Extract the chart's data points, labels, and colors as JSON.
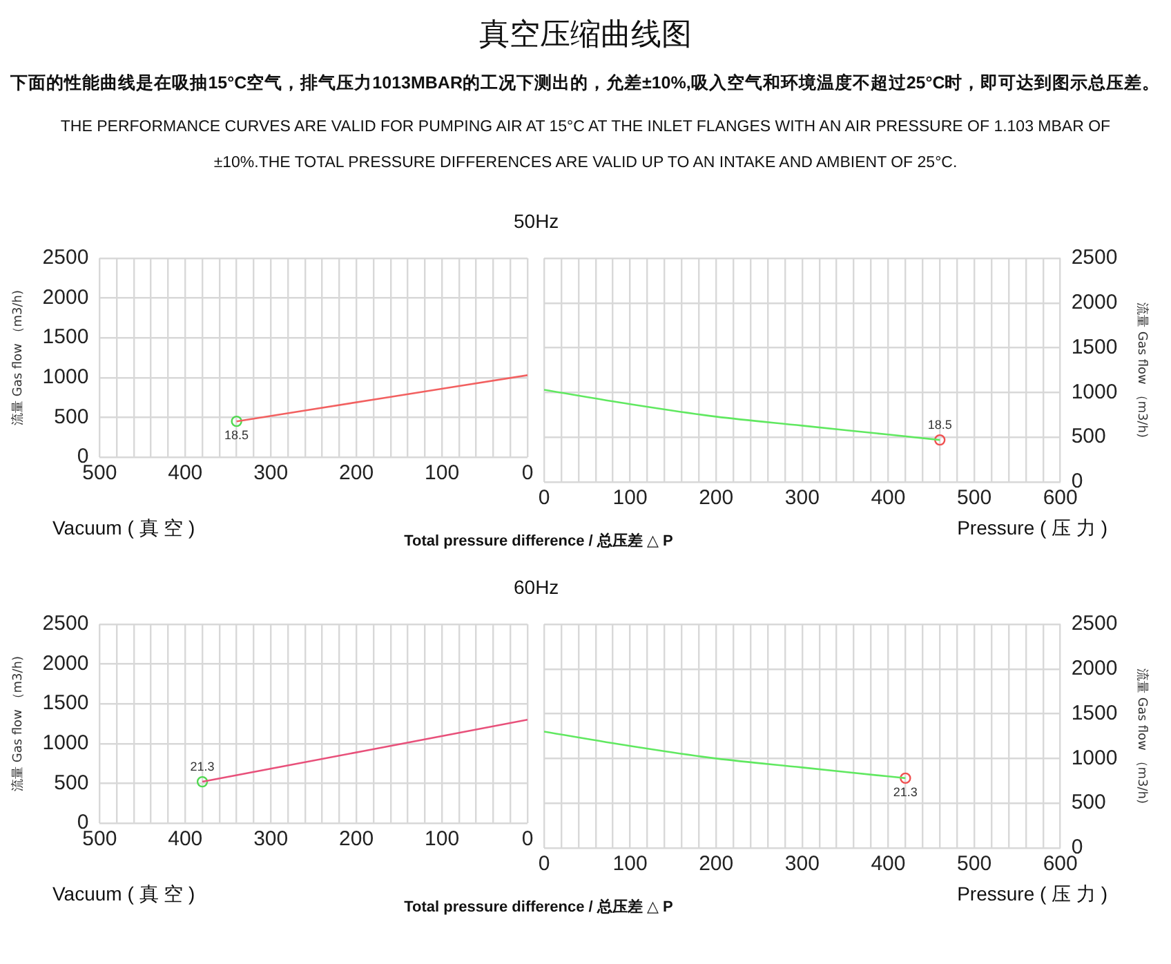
{
  "chart_data": [
    {
      "type": "line",
      "annotations": [
        "真空压缩曲线图",
        "下面的性能曲线是在吸抽15°C空气，排气压力1013MBAR的工况下测出的，允差±10%,吸入空气和环境温度不超过25°C时，即可达到图示总压差。",
        "THE PERFORMANCE CURVES ARE VALID FOR PUMPING AIR AT 15°C AT THE INLET FLANGES WITH AN AIR PRESSURE OF 1.103 MBAR OF ±10%.THE TOTAL PRESSURE DIFFERENCES ARE VALID UP TO AN INTAKE AND AMBIENT OF 25°C.",
        {
          "text": "18.5",
          "x": 340,
          "y": 450
        }
      ],
      "xlabel": "Vacuum ( 真 空 )",
      "ylabel": "流量 Gas flow （m3/h)",
      "grid": true,
      "xlim": [
        500,
        0
      ],
      "xticks": [
        500,
        {
          "value": 480,
          "label": null
        },
        {
          "value": 460,
          "label": null
        },
        {
          "value": 440,
          "label": null
        },
        {
          "value": 420,
          "label": null
        },
        400,
        {
          "value": 380,
          "label": null
        },
        {
          "value": 360,
          "label": null
        },
        {
          "value": 340,
          "label": null
        },
        {
          "value": 320,
          "label": null
        },
        300,
        {
          "value": 280,
          "label": null
        },
        {
          "value": 260,
          "label": null
        },
        {
          "value": 240,
          "label": null
        },
        {
          "value": 220,
          "label": null
        },
        200,
        {
          "value": 180,
          "label": null
        },
        {
          "value": 160,
          "label": null
        },
        {
          "value": 140,
          "label": null
        },
        {
          "value": 120,
          "label": null
        },
        100,
        {
          "value": 80,
          "label": null
        },
        {
          "value": 60,
          "label": null
        },
        {
          "value": 40,
          "label": null
        },
        {
          "value": 20,
          "label": null
        },
        0
      ],
      "ylim": [
        0,
        2500
      ],
      "yticks": [
        0,
        500,
        1000,
        1500,
        2000,
        2500
      ],
      "series": [
        {
          "type": "line",
          "color": "#f26060",
          "x": [
            0,
            170,
            340
          ],
          "values": [
            1030,
            740,
            450
          ]
        },
        {
          "type": "scatter",
          "marker": "circle",
          "color": "#50d850",
          "x": [
            340
          ],
          "values": [
            450
          ]
        }
      ]
    },
    {
      "type": "line",
      "title": "50Hz",
      "annotations": [
        "Total pressure difference / 总压差 △ P",
        {
          "text": "18.5",
          "x": 460,
          "y": 470
        }
      ],
      "xlabel": "Pressure ( 压 力 )",
      "ylabel": "流量 Gas flow （m3/h)",
      "grid": true,
      "xlim": [
        0,
        600
      ],
      "xticks": [
        0,
        {
          "value": 20,
          "label": null
        },
        {
          "value": 40,
          "label": null
        },
        {
          "value": 60,
          "label": null
        },
        {
          "value": 80,
          "label": null
        },
        100,
        {
          "value": 120,
          "label": null
        },
        {
          "value": 140,
          "label": null
        },
        {
          "value": 160,
          "label": null
        },
        {
          "value": 180,
          "label": null
        },
        200,
        {
          "value": 220,
          "label": null
        },
        {
          "value": 240,
          "label": null
        },
        {
          "value": 260,
          "label": null
        },
        {
          "value": 280,
          "label": null
        },
        300,
        {
          "value": 320,
          "label": null
        },
        {
          "value": 340,
          "label": null
        },
        {
          "value": 360,
          "label": null
        },
        {
          "value": 380,
          "label": null
        },
        400,
        {
          "value": 420,
          "label": null
        },
        {
          "value": 440,
          "label": null
        },
        {
          "value": 460,
          "label": null
        },
        {
          "value": 480,
          "label": null
        },
        500,
        {
          "value": 520,
          "label": null
        },
        {
          "value": 540,
          "label": null
        },
        {
          "value": 560,
          "label": null
        },
        {
          "value": 580,
          "label": null
        },
        600
      ],
      "ylim": [
        0,
        2500
      ],
      "yticks": [
        0,
        500,
        1000,
        1500,
        2000,
        2500
      ],
      "series": [
        {
          "type": "line",
          "color": "#60e860",
          "x": [
            0,
            100,
            200,
            300,
            400,
            460
          ],
          "values": [
            1030,
            870,
            730,
            630,
            530,
            470
          ]
        },
        {
          "type": "scatter",
          "marker": "circle",
          "color": "#f05050",
          "x": [
            460
          ],
          "values": [
            470
          ]
        }
      ]
    },
    {
      "type": "line",
      "annotations": [
        {
          "text": "21.3",
          "x": 380,
          "y": 520
        }
      ],
      "xlabel": "Vacuum ( 真 空 )",
      "ylabel": "流量 Gas flow （m3/h)",
      "grid": true,
      "xlim": [
        500,
        0
      ],
      "xticks": [
        500,
        {
          "value": 480,
          "label": null
        },
        {
          "value": 460,
          "label": null
        },
        {
          "value": 440,
          "label": null
        },
        {
          "value": 420,
          "label": null
        },
        400,
        {
          "value": 380,
          "label": null
        },
        {
          "value": 360,
          "label": null
        },
        {
          "value": 340,
          "label": null
        },
        {
          "value": 320,
          "label": null
        },
        300,
        {
          "value": 280,
          "label": null
        },
        {
          "value": 260,
          "label": null
        },
        {
          "value": 240,
          "label": null
        },
        {
          "value": 220,
          "label": null
        },
        200,
        {
          "value": 180,
          "label": null
        },
        {
          "value": 160,
          "label": null
        },
        {
          "value": 140,
          "label": null
        },
        {
          "value": 120,
          "label": null
        },
        100,
        {
          "value": 80,
          "label": null
        },
        {
          "value": 60,
          "label": null
        },
        {
          "value": 40,
          "label": null
        },
        {
          "value": 20,
          "label": null
        },
        0
      ],
      "ylim": [
        0,
        2500
      ],
      "yticks": [
        0,
        500,
        1000,
        1500,
        2000,
        2500
      ],
      "series": [
        {
          "type": "line",
          "color": "#e8507a",
          "x": [
            0,
            190,
            380
          ],
          "values": [
            1300,
            910,
            520
          ]
        },
        {
          "type": "scatter",
          "marker": "circle",
          "color": "#50d850",
          "x": [
            380
          ],
          "values": [
            520
          ]
        }
      ]
    },
    {
      "type": "line",
      "title": "60Hz",
      "annotations": [
        "Total pressure difference / 总压差 △ P",
        {
          "text": "21.3",
          "x": 420,
          "y": 780
        }
      ],
      "xlabel": "Pressure ( 压 力 )",
      "ylabel": "流量 Gas flow （m3/h)",
      "grid": true,
      "xlim": [
        0,
        600
      ],
      "xticks": [
        0,
        {
          "value": 20,
          "label": null
        },
        {
          "value": 40,
          "label": null
        },
        {
          "value": 60,
          "label": null
        },
        {
          "value": 80,
          "label": null
        },
        100,
        {
          "value": 120,
          "label": null
        },
        {
          "value": 140,
          "label": null
        },
        {
          "value": 160,
          "label": null
        },
        {
          "value": 180,
          "label": null
        },
        200,
        {
          "value": 220,
          "label": null
        },
        {
          "value": 240,
          "label": null
        },
        {
          "value": 260,
          "label": null
        },
        {
          "value": 280,
          "label": null
        },
        300,
        {
          "value": 320,
          "label": null
        },
        {
          "value": 340,
          "label": null
        },
        {
          "value": 360,
          "label": null
        },
        {
          "value": 380,
          "label": null
        },
        400,
        {
          "value": 420,
          "label": null
        },
        {
          "value": 440,
          "label": null
        },
        {
          "value": 460,
          "label": null
        },
        {
          "value": 480,
          "label": null
        },
        500,
        {
          "value": 520,
          "label": null
        },
        {
          "value": 540,
          "label": null
        },
        {
          "value": 560,
          "label": null
        },
        {
          "value": 580,
          "label": null
        },
        600
      ],
      "ylim": [
        0,
        2500
      ],
      "yticks": [
        0,
        500,
        1000,
        1500,
        2000,
        2500
      ],
      "series": [
        {
          "type": "line",
          "color": "#60e860",
          "x": [
            0,
            100,
            200,
            300,
            400,
            420
          ],
          "values": [
            1300,
            1140,
            1000,
            900,
            800,
            780
          ]
        },
        {
          "type": "scatter",
          "marker": "circle",
          "color": "#f05050",
          "x": [
            420
          ],
          "values": [
            780
          ]
        }
      ]
    }
  ]
}
